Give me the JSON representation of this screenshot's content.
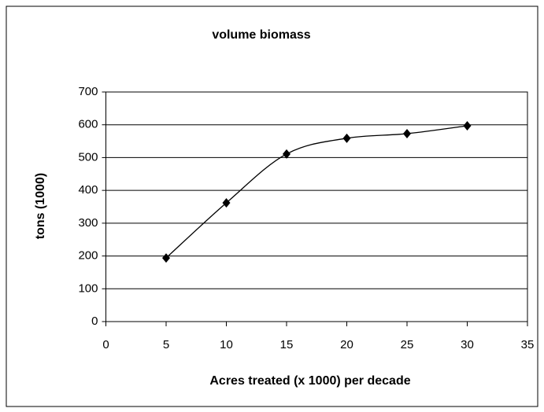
{
  "chart_data": {
    "type": "line",
    "title": "volume biomass",
    "x_label": "Acres treated (x 1000) per decade",
    "y_label": "tons (1000)",
    "series": [
      {
        "name": "volume biomass",
        "color": "#000000",
        "x": [
          5,
          10,
          15,
          20,
          25,
          30
        ],
        "values": [
          194,
          362,
          511,
          559,
          573,
          597
        ]
      }
    ],
    "xlim": [
      0,
      35
    ],
    "xticks": [
      0,
      5,
      10,
      15,
      20,
      25,
      30,
      35
    ],
    "ylim": [
      0,
      700
    ],
    "yticks": [
      0,
      100,
      200,
      300,
      400,
      500,
      600,
      700
    ],
    "grid": true,
    "smooth": true
  }
}
